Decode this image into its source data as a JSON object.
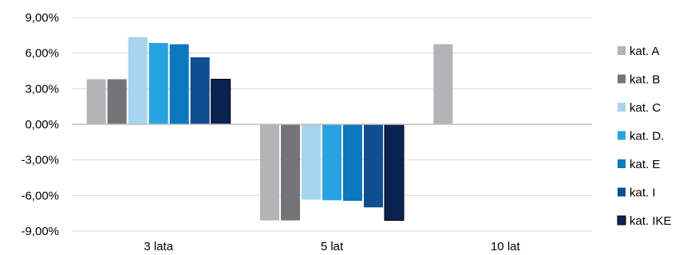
{
  "chart_data": {
    "type": "bar",
    "categories": [
      "3 lata",
      "5 lat",
      "10 lat"
    ],
    "series": [
      {
        "name": "kat. A",
        "color": "#b4b4b7",
        "values": [
          3.8,
          -8.1,
          6.75
        ]
      },
      {
        "name": "kat. B",
        "color": "#747476",
        "values": [
          3.8,
          -8.1,
          null
        ]
      },
      {
        "name": "kat. C",
        "color": "#a7d4ee",
        "values": [
          7.35,
          -6.35,
          null
        ]
      },
      {
        "name": "kat. D.",
        "color": "#28a3e1",
        "values": [
          6.85,
          -6.4,
          null
        ]
      },
      {
        "name": "kat. E",
        "color": "#0b78c0",
        "values": [
          6.75,
          -6.45,
          null
        ]
      },
      {
        "name": "kat. I",
        "color": "#0e4e91",
        "values": [
          5.65,
          -7.0,
          null
        ]
      },
      {
        "name": "kat. IKE",
        "color": "#0b2350",
        "values": [
          3.8,
          -8.1,
          null
        ]
      }
    ],
    "y_ticks": [
      "9,00%",
      "6,00%",
      "3,00%",
      "0,00%",
      "-3,00%",
      "-6,00%",
      "-9,00%"
    ],
    "y_tick_values": [
      9,
      6,
      3,
      0,
      -3,
      -6,
      -9
    ],
    "ylim": [
      -9,
      9
    ],
    "grid": true,
    "legend_position": "right"
  }
}
